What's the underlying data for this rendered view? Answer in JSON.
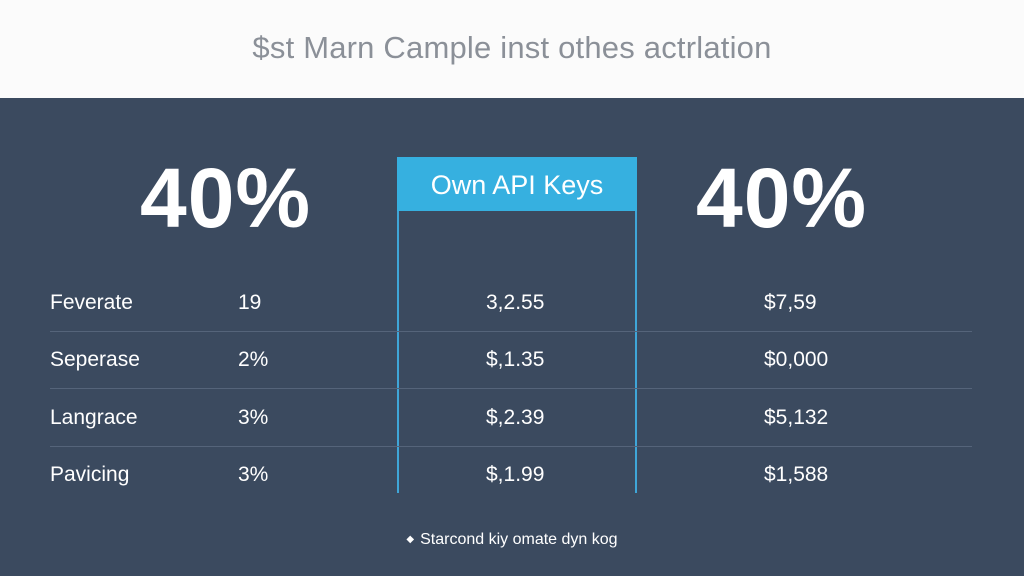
{
  "header": {
    "title": "$st Marn Cample inst othes actrlation"
  },
  "stats": {
    "left": "40%",
    "right": "40%"
  },
  "highlight": {
    "label": "Own API Keys",
    "color": "#36b0e0"
  },
  "table": {
    "rows": [
      {
        "label": "Feverate",
        "pct": "19",
        "mid": "3,2.55",
        "right": "$7,59"
      },
      {
        "label": "Seperase",
        "pct": "2%",
        "mid": "$,1.35",
        "right": "$0,000"
      },
      {
        "label": "Langrace",
        "pct": "3%",
        "mid": "$,2.39",
        "right": "$5,132"
      },
      {
        "label": "Pavicing",
        "pct": "3%",
        "mid": "$,1.99",
        "right": "$1,588"
      }
    ]
  },
  "footer": {
    "note": "Starcond kiy omate dyn kog"
  }
}
